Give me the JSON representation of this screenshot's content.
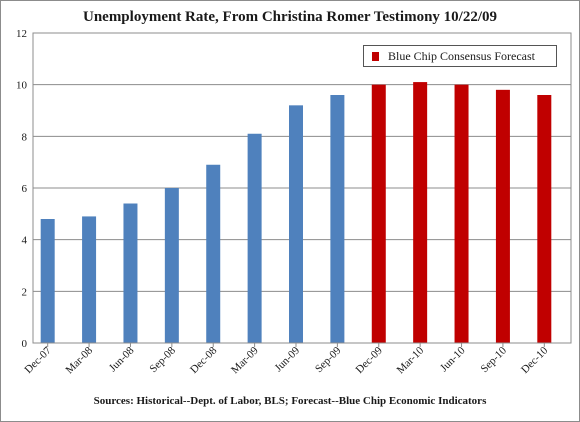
{
  "chart_data": {
    "type": "bar",
    "title": "Unemployment Rate, From Christina Romer Testimony 10/22/09",
    "source": "Sources: Historical--Dept. of Labor, BLS; Forecast--Blue Chip Economic Indicators",
    "categories": [
      "Dec-07",
      "Mar-08",
      "Jun-08",
      "Sep-08",
      "Dec-08",
      "Mar-09",
      "Jun-09",
      "Sep-09",
      "Dec-09",
      "Mar-10",
      "Jun-10",
      "Sep-10",
      "Dec-10"
    ],
    "series": [
      {
        "values": [
          4.8,
          4.9,
          5.4,
          6.0,
          6.9,
          8.1,
          9.2,
          9.6,
          null,
          null,
          null,
          null,
          null
        ],
        "color": "#4f81bd"
      },
      {
        "name": "Blue Chip Consensus Forecast",
        "values": [
          null,
          null,
          null,
          null,
          null,
          null,
          null,
          null,
          10.0,
          10.1,
          10.0,
          9.8,
          9.6
        ],
        "color": "#c00000"
      }
    ],
    "ylim": [
      0,
      12
    ],
    "yticks": [
      0,
      2,
      4,
      6,
      8,
      10,
      12
    ],
    "grid": true,
    "legend": "top-right"
  }
}
